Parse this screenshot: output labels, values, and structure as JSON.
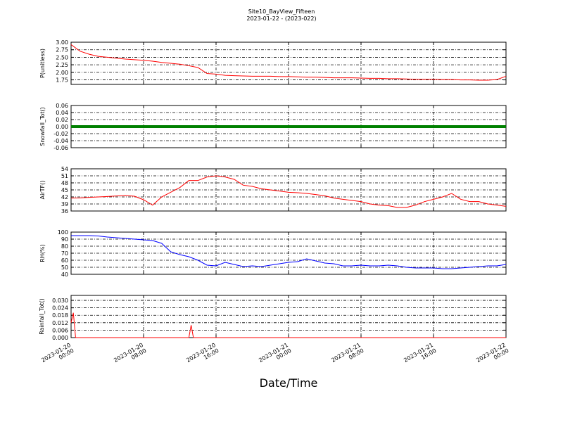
{
  "chart_data": [
    {
      "type": "line",
      "title": "Site10_BayView_Fifteen",
      "subtitle": "2023-01-22 - (2023-022)",
      "ylabel": "P(unitless)",
      "xlim": [
        "2023-01-20 00:00",
        "2023-01-22 00:00"
      ],
      "xticks": [
        "2023-01-20 00:00",
        "2023-01-20 08:00",
        "2023-01-20 16:00",
        "2023-01-21 00:00",
        "2023-01-21 08:00",
        "2023-01-21 16:00",
        "2023-01-22 00:00"
      ],
      "ylim": [
        1.6,
        3.0
      ],
      "yticks": [
        {
          "value": 1.75,
          "label": "1.75"
        },
        {
          "value": 2.0,
          "label": "2.00"
        },
        {
          "value": 2.25,
          "label": "2.25"
        },
        {
          "value": 2.5,
          "label": "2.50"
        },
        {
          "value": 2.75,
          "label": "2.75"
        },
        {
          "value": 3.0,
          "label": "3.00"
        }
      ],
      "grid": true,
      "x": [
        "2023-01-20 00:00",
        "2023-01-20 01:00",
        "2023-01-20 02:00",
        "2023-01-20 03:00",
        "2023-01-20 04:00",
        "2023-01-20 05:00",
        "2023-01-20 06:00",
        "2023-01-20 07:00",
        "2023-01-20 08:00",
        "2023-01-20 09:00",
        "2023-01-20 10:00",
        "2023-01-20 11:00",
        "2023-01-20 12:00",
        "2023-01-20 13:00",
        "2023-01-20 14:00",
        "2023-01-20 15:00",
        "2023-01-20 16:00",
        "2023-01-20 17:00",
        "2023-01-20 18:00",
        "2023-01-20 19:00",
        "2023-01-20 20:00",
        "2023-01-20 21:00",
        "2023-01-20 22:00",
        "2023-01-20 23:00",
        "2023-01-21 00:00",
        "2023-01-21 01:00",
        "2023-01-21 02:00",
        "2023-01-21 03:00",
        "2023-01-21 04:00",
        "2023-01-21 05:00",
        "2023-01-21 06:00",
        "2023-01-21 07:00",
        "2023-01-21 08:00",
        "2023-01-21 09:00",
        "2023-01-21 10:00",
        "2023-01-21 11:00",
        "2023-01-21 12:00",
        "2023-01-21 13:00",
        "2023-01-21 14:00",
        "2023-01-21 15:00",
        "2023-01-21 16:00",
        "2023-01-21 17:00",
        "2023-01-21 18:00",
        "2023-01-21 19:00",
        "2023-01-21 20:00",
        "2023-01-21 21:00",
        "2023-01-21 22:00",
        "2023-01-21 23:00",
        "2023-01-22 00:00"
      ],
      "series": [
        {
          "color": "#ff0000",
          "values": [
            2.92,
            2.7,
            2.6,
            2.53,
            2.5,
            2.47,
            2.44,
            2.42,
            2.4,
            2.37,
            2.33,
            2.3,
            2.27,
            2.22,
            2.16,
            1.96,
            1.94,
            1.9,
            1.89,
            1.88,
            1.87,
            1.87,
            1.87,
            1.86,
            1.86,
            1.85,
            1.84,
            1.84,
            1.83,
            1.82,
            1.82,
            1.82,
            1.81,
            1.8,
            1.8,
            1.79,
            1.79,
            1.78,
            1.77,
            1.77,
            1.77,
            1.76,
            1.76,
            1.75,
            1.75,
            1.74,
            1.74,
            1.76,
            1.87
          ]
        }
      ]
    },
    {
      "type": "line",
      "ylabel": "Snowfall_Tot()",
      "xlim": [
        "2023-01-20 00:00",
        "2023-01-22 00:00"
      ],
      "xticks": [
        "2023-01-20 00:00",
        "2023-01-20 08:00",
        "2023-01-20 16:00",
        "2023-01-21 00:00",
        "2023-01-21 08:00",
        "2023-01-21 16:00",
        "2023-01-22 00:00"
      ],
      "ylim": [
        -0.06,
        0.06
      ],
      "yticks": [
        -0.06,
        -0.04,
        -0.02,
        {
          "value": 0,
          "label": "0.00"
        },
        0.02,
        0.04,
        0.06
      ],
      "grid": true,
      "x": [
        "2023-01-20 00:00",
        "2023-01-20 02:00",
        "2023-01-20 04:00",
        "2023-01-20 06:00",
        "2023-01-20 08:00",
        "2023-01-20 10:00",
        "2023-01-20 12:00",
        "2023-01-20 14:00",
        "2023-01-20 16:00",
        "2023-01-20 18:00",
        "2023-01-20 20:00",
        "2023-01-20 22:00",
        "2023-01-21 00:00",
        "2023-01-21 02:00",
        "2023-01-21 04:00",
        "2023-01-21 06:00",
        "2023-01-21 08:00",
        "2023-01-21 10:00",
        "2023-01-21 12:00",
        "2023-01-21 14:00",
        "2023-01-21 16:00",
        "2023-01-21 18:00",
        "2023-01-21 20:00",
        "2023-01-21 22:00",
        "2023-01-22 00:00"
      ],
      "series": [
        {
          "color": "#008000",
          "values": [
            0,
            0,
            0,
            0,
            0,
            0,
            0,
            0,
            0,
            0,
            0,
            0,
            0,
            0,
            0,
            0,
            0,
            0,
            0,
            0,
            0,
            0,
            0,
            0,
            0
          ]
        }
      ]
    },
    {
      "type": "line",
      "ylabel": "AirTF()",
      "xlim": [
        "2023-01-20 00:00",
        "2023-01-22 00:00"
      ],
      "xticks": [
        "2023-01-20 00:00",
        "2023-01-20 08:00",
        "2023-01-20 16:00",
        "2023-01-21 00:00",
        "2023-01-21 08:00",
        "2023-01-21 16:00",
        "2023-01-22 00:00"
      ],
      "ylim": [
        36,
        54
      ],
      "yticks": [
        36,
        39,
        42,
        45,
        48,
        51,
        54
      ],
      "grid": true,
      "x": [
        "2023-01-20 00:00",
        "2023-01-20 01:00",
        "2023-01-20 02:00",
        "2023-01-20 03:00",
        "2023-01-20 04:00",
        "2023-01-20 05:00",
        "2023-01-20 06:00",
        "2023-01-20 07:00",
        "2023-01-20 08:00",
        "2023-01-20 09:00",
        "2023-01-20 10:00",
        "2023-01-20 11:00",
        "2023-01-20 12:00",
        "2023-01-20 13:00",
        "2023-01-20 14:00",
        "2023-01-20 15:00",
        "2023-01-20 16:00",
        "2023-01-20 17:00",
        "2023-01-20 18:00",
        "2023-01-20 19:00",
        "2023-01-20 20:00",
        "2023-01-20 21:00",
        "2023-01-20 22:00",
        "2023-01-20 23:00",
        "2023-01-21 00:00",
        "2023-01-21 01:00",
        "2023-01-21 02:00",
        "2023-01-21 03:00",
        "2023-01-21 04:00",
        "2023-01-21 05:00",
        "2023-01-21 06:00",
        "2023-01-21 07:00",
        "2023-01-21 08:00",
        "2023-01-21 09:00",
        "2023-01-21 10:00",
        "2023-01-21 11:00",
        "2023-01-21 12:00",
        "2023-01-21 13:00",
        "2023-01-21 14:00",
        "2023-01-21 15:00",
        "2023-01-21 16:00",
        "2023-01-21 17:00",
        "2023-01-21 18:00",
        "2023-01-21 19:00",
        "2023-01-21 20:00",
        "2023-01-21 21:00",
        "2023-01-21 22:00",
        "2023-01-21 23:00",
        "2023-01-22 00:00"
      ],
      "series": [
        {
          "color": "#ff0000",
          "values": [
            41.5,
            41.6,
            41.8,
            42,
            42.2,
            42.4,
            42.6,
            42.3,
            40.8,
            38.5,
            42,
            44,
            46,
            49,
            49,
            50.5,
            51,
            50.5,
            49.5,
            47,
            46.5,
            45.5,
            45,
            44.5,
            44,
            43.8,
            43.5,
            43,
            42.5,
            41.5,
            41,
            40.5,
            40,
            39,
            38.5,
            38.3,
            37.5,
            37.5,
            38.5,
            40,
            41,
            42,
            43.5,
            41,
            40,
            40,
            39,
            38.5,
            38
          ]
        }
      ]
    },
    {
      "type": "line",
      "ylabel": "RH(%)",
      "xlim": [
        "2023-01-20 00:00",
        "2023-01-22 00:00"
      ],
      "xticks": [
        "2023-01-20 00:00",
        "2023-01-20 08:00",
        "2023-01-20 16:00",
        "2023-01-21 00:00",
        "2023-01-21 08:00",
        "2023-01-21 16:00",
        "2023-01-22 00:00"
      ],
      "ylim": [
        40,
        100
      ],
      "yticks": [
        40,
        50,
        60,
        70,
        80,
        90,
        100
      ],
      "grid": true,
      "x": [
        "2023-01-20 00:00",
        "2023-01-20 01:00",
        "2023-01-20 02:00",
        "2023-01-20 03:00",
        "2023-01-20 04:00",
        "2023-01-20 05:00",
        "2023-01-20 06:00",
        "2023-01-20 07:00",
        "2023-01-20 08:00",
        "2023-01-20 09:00",
        "2023-01-20 10:00",
        "2023-01-20 11:00",
        "2023-01-20 12:00",
        "2023-01-20 13:00",
        "2023-01-20 14:00",
        "2023-01-20 15:00",
        "2023-01-20 16:00",
        "2023-01-20 17:00",
        "2023-01-20 18:00",
        "2023-01-20 19:00",
        "2023-01-20 20:00",
        "2023-01-20 21:00",
        "2023-01-20 22:00",
        "2023-01-20 23:00",
        "2023-01-21 00:00",
        "2023-01-21 01:00",
        "2023-01-21 02:00",
        "2023-01-21 03:00",
        "2023-01-21 04:00",
        "2023-01-21 05:00",
        "2023-01-21 06:00",
        "2023-01-21 07:00",
        "2023-01-21 08:00",
        "2023-01-21 09:00",
        "2023-01-21 10:00",
        "2023-01-21 11:00",
        "2023-01-21 12:00",
        "2023-01-21 13:00",
        "2023-01-21 14:00",
        "2023-01-21 15:00",
        "2023-01-21 16:00",
        "2023-01-21 17:00",
        "2023-01-21 18:00",
        "2023-01-21 19:00",
        "2023-01-21 20:00",
        "2023-01-21 21:00",
        "2023-01-21 22:00",
        "2023-01-21 23:00",
        "2023-01-22 00:00"
      ],
      "series": [
        {
          "color": "#0000ff",
          "values": [
            95,
            95,
            95,
            94.5,
            93,
            92,
            91,
            90,
            89,
            88,
            84,
            72,
            68,
            65,
            60,
            53,
            52,
            57,
            54,
            51,
            52,
            51,
            53,
            55,
            57,
            58,
            62,
            59,
            56,
            55,
            52,
            52,
            53,
            52,
            52,
            53,
            52,
            50,
            49,
            49,
            49,
            48,
            48,
            49,
            50,
            51,
            52,
            52,
            54
          ]
        }
      ]
    },
    {
      "type": "line",
      "ylabel": "Rainfall_Tot()",
      "xlabel": "Date/Time",
      "xlim": [
        "2023-01-20 00:00",
        "2023-01-22 00:00"
      ],
      "xticks": [
        {
          "value": "2023-01-20 00:00",
          "label": [
            "2023-01-20",
            "00:00"
          ]
        },
        {
          "value": "2023-01-20 08:00",
          "label": [
            "2023-01-20",
            "08:00"
          ]
        },
        {
          "value": "2023-01-20 16:00",
          "label": [
            "2023-01-20",
            "16:00"
          ]
        },
        {
          "value": "2023-01-21 00:00",
          "label": [
            "2023-01-21",
            "00:00"
          ]
        },
        {
          "value": "2023-01-21 08:00",
          "label": [
            "2023-01-21",
            "08:00"
          ]
        },
        {
          "value": "2023-01-21 16:00",
          "label": [
            "2023-01-21",
            "16:00"
          ]
        },
        {
          "value": "2023-01-22 00:00",
          "label": [
            "2023-01-22",
            "00:00"
          ]
        }
      ],
      "ylim": [
        0,
        0.034
      ],
      "yticks": [
        {
          "value": 0,
          "label": "0.000"
        },
        0.006,
        0.012,
        0.018,
        0.024,
        {
          "value": 0.03,
          "label": "0.030"
        }
      ],
      "grid": true,
      "x": [
        "2023-01-20 00:00",
        "2023-01-20 00:15",
        "2023-01-20 00:30",
        "2023-01-20 13:00",
        "2023-01-20 13:15",
        "2023-01-20 13:30",
        "2023-01-22 00:00"
      ],
      "series": [
        {
          "color": "#ff0000",
          "values": [
            0.012,
            0.02,
            0,
            0,
            0.01,
            0,
            0
          ]
        }
      ]
    }
  ]
}
